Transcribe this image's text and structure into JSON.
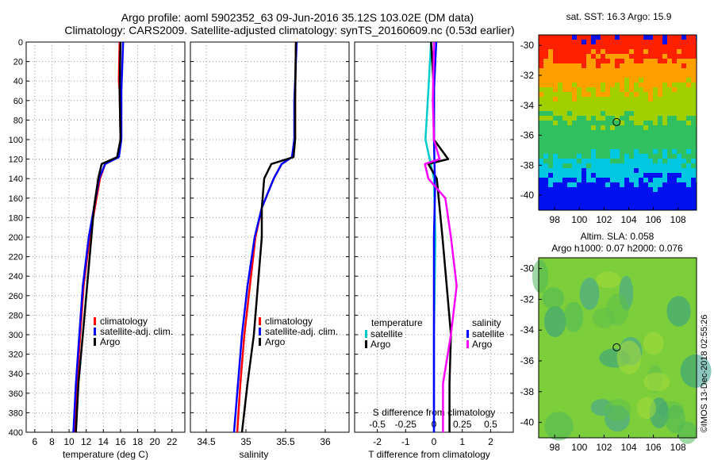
{
  "title": {
    "line1": "Argo profile: aoml 5902352_63 09-Jun-2016 35.12S 103.02E (DM data)",
    "line2": "Climatology: CARS2009. Satellite-adjusted climatology: synTS_20160609.nc (0.53d earlier)"
  },
  "timestamp": "©IMOS 13-Dec-2018 02:55:26",
  "colors": {
    "climatology": "#ff0000",
    "satellite": "#0000ff",
    "argo": "#000000",
    "sat_diff_T": "#00cccc",
    "argo_diff_S": "#ff00ff"
  },
  "chart_data": [
    {
      "type": "line",
      "name": "temperature",
      "xlabel": "temperature (deg C)",
      "ylabel": "",
      "xlim": [
        5,
        23.5
      ],
      "ylim": [
        400,
        0
      ],
      "xticks": [
        6,
        8,
        10,
        12,
        14,
        16,
        18,
        20,
        22
      ],
      "yticks": [
        0,
        20,
        40,
        60,
        80,
        100,
        120,
        140,
        160,
        180,
        200,
        220,
        240,
        260,
        280,
        300,
        320,
        340,
        360,
        380,
        400
      ],
      "grid": true,
      "legend": [
        "climatology",
        "satellite-adj. clim.",
        "Argo"
      ],
      "series": [
        {
          "name": "climatology",
          "color": "#ff0000",
          "depth": [
            0,
            40,
            50,
            100,
            118,
            125,
            140,
            170,
            200,
            250,
            300,
            350,
            400
          ],
          "values": [
            15.9,
            15.8,
            15.9,
            16.0,
            15.7,
            14.2,
            13.6,
            13.0,
            12.4,
            11.7,
            11.3,
            10.9,
            10.6
          ]
        },
        {
          "name": "satellite-adj. clim.",
          "color": "#0000ff",
          "depth": [
            0,
            50,
            100,
            118,
            125,
            140,
            170,
            200,
            250,
            300,
            350,
            400
          ],
          "values": [
            16.3,
            16.1,
            16.1,
            15.8,
            14.2,
            13.5,
            12.9,
            12.3,
            11.6,
            11.2,
            10.8,
            10.5
          ]
        },
        {
          "name": "Argo",
          "color": "#000000",
          "depth": [
            0,
            50,
            100,
            118,
            125,
            140,
            170,
            200,
            250,
            300,
            350,
            400
          ],
          "values": [
            16.0,
            15.9,
            16.0,
            15.6,
            13.8,
            13.4,
            12.9,
            12.6,
            12.1,
            11.6,
            11.1,
            10.8
          ]
        }
      ]
    },
    {
      "type": "line",
      "name": "salinity",
      "xlabel": "salinity",
      "ylabel": "",
      "xlim": [
        34.3,
        36.3
      ],
      "ylim": [
        400,
        0
      ],
      "xticks": [
        34.5,
        35,
        35.5,
        36
      ],
      "grid": true,
      "legend": [
        "climatology",
        "satellite-adj. clim.",
        "Argo"
      ],
      "series": [
        {
          "name": "climatology",
          "color": "#ff0000",
          "depth": [
            0,
            60,
            100,
            118,
            125,
            140,
            170,
            200,
            250,
            300,
            350,
            400
          ],
          "values": [
            35.63,
            35.62,
            35.62,
            35.58,
            35.45,
            35.35,
            35.2,
            35.12,
            35.05,
            34.98,
            34.93,
            34.89
          ]
        },
        {
          "name": "satellite-adj. clim.",
          "color": "#0000ff",
          "depth": [
            0,
            60,
            100,
            118,
            125,
            140,
            170,
            200,
            250,
            300,
            350,
            400
          ],
          "values": [
            35.64,
            35.61,
            35.61,
            35.58,
            35.45,
            35.35,
            35.2,
            35.11,
            35.02,
            34.95,
            34.9,
            34.85
          ]
        },
        {
          "name": "Argo",
          "color": "#000000",
          "depth": [
            0,
            60,
            100,
            118,
            125,
            140,
            170,
            200,
            250,
            300,
            350,
            400
          ],
          "values": [
            35.63,
            35.62,
            35.62,
            35.6,
            35.32,
            35.23,
            35.2,
            35.2,
            35.15,
            35.1,
            35.02,
            34.95
          ]
        }
      ]
    },
    {
      "type": "line",
      "name": "difference from climatology",
      "xlabel": "T difference from climatology",
      "x2label": "S difference from climatology",
      "xlim": [
        -2.8,
        2.8
      ],
      "x2lim": [
        -0.7,
        0.7
      ],
      "ylim": [
        400,
        0
      ],
      "xticks": [
        -2,
        -1,
        0,
        1,
        2
      ],
      "x2ticks": [
        "-0.5",
        "-0.25",
        "0",
        "0.25",
        "0.5"
      ],
      "grid": true,
      "legend_left_title": "temperature",
      "legend_right_title": "salinity",
      "legend_left": [
        "satellite",
        "Argo"
      ],
      "legend_right": [
        "satellite",
        "Argo"
      ],
      "series": [
        {
          "name": "T satellite",
          "color": "#00cccc",
          "depth": [
            0,
            50,
            100,
            140,
            200,
            300,
            400
          ],
          "values": [
            -0.1,
            -0.2,
            -0.3,
            0.0,
            0.05,
            0.0,
            0.0
          ]
        },
        {
          "name": "T Argo",
          "color": "#000000",
          "depth": [
            0,
            50,
            100,
            120,
            125,
            140,
            200,
            250,
            300,
            350,
            400
          ],
          "values": [
            -0.1,
            0.0,
            0.0,
            0.5,
            -0.2,
            0.1,
            0.3,
            0.45,
            0.6,
            0.55,
            0.55
          ]
        },
        {
          "name": "S satellite",
          "color": "#0000ff",
          "depth": [
            0,
            50,
            100,
            150,
            200,
            300,
            400
          ],
          "values": [
            0.02,
            0.0,
            0.0,
            0.01,
            0.0,
            0.0,
            0.0
          ]
        },
        {
          "name": "S Argo",
          "color": "#ff00ff",
          "depth": [
            0,
            60,
            100,
            120,
            125,
            140,
            160,
            200,
            250,
            300,
            350,
            400
          ],
          "values": [
            0.0,
            -0.01,
            0.0,
            0.05,
            -0.08,
            -0.05,
            0.1,
            0.15,
            0.2,
            0.15,
            0.08,
            0.08
          ]
        }
      ]
    },
    {
      "type": "heatmap",
      "name": "sat SST map",
      "title": "sat. SST: 16.3 Argo: 15.9",
      "xticks": [
        98,
        100,
        102,
        104,
        106,
        108
      ],
      "yticks": [
        -30,
        -32,
        -34,
        -36,
        -38,
        -40
      ],
      "xlim": [
        96.7,
        109.5
      ],
      "ylim": [
        -41,
        -29.3
      ],
      "argo_position": [
        103.02,
        -35.12
      ],
      "color_bands": [
        {
          "lat_from": -29.3,
          "lat_to": -31.0,
          "color": "#ff2000"
        },
        {
          "lat_from": -31.0,
          "lat_to": -33.0,
          "color": "#ffa000"
        },
        {
          "lat_from": -33.0,
          "lat_to": -35.0,
          "color": "#a0d000"
        },
        {
          "lat_from": -35.0,
          "lat_to": -37.5,
          "color": "#30c060"
        },
        {
          "lat_from": -37.5,
          "lat_to": -39.0,
          "color": "#00c8e0"
        },
        {
          "lat_from": -39.0,
          "lat_to": -41.0,
          "color": "#0010f0"
        }
      ]
    },
    {
      "type": "heatmap",
      "name": "altimetry SLA map",
      "title_line1": "Altim. SLA: 0.058",
      "title_line2": "Argo h1000: 0.07 h2000: 0.076",
      "xticks": [
        98,
        100,
        102,
        104,
        106,
        108
      ],
      "yticks": [
        -30,
        -32,
        -34,
        -36,
        -38,
        -40
      ],
      "xlim": [
        96.7,
        109.5
      ],
      "ylim": [
        -41,
        -29.3
      ],
      "argo_position": [
        103.02,
        -35.12
      ]
    }
  ]
}
